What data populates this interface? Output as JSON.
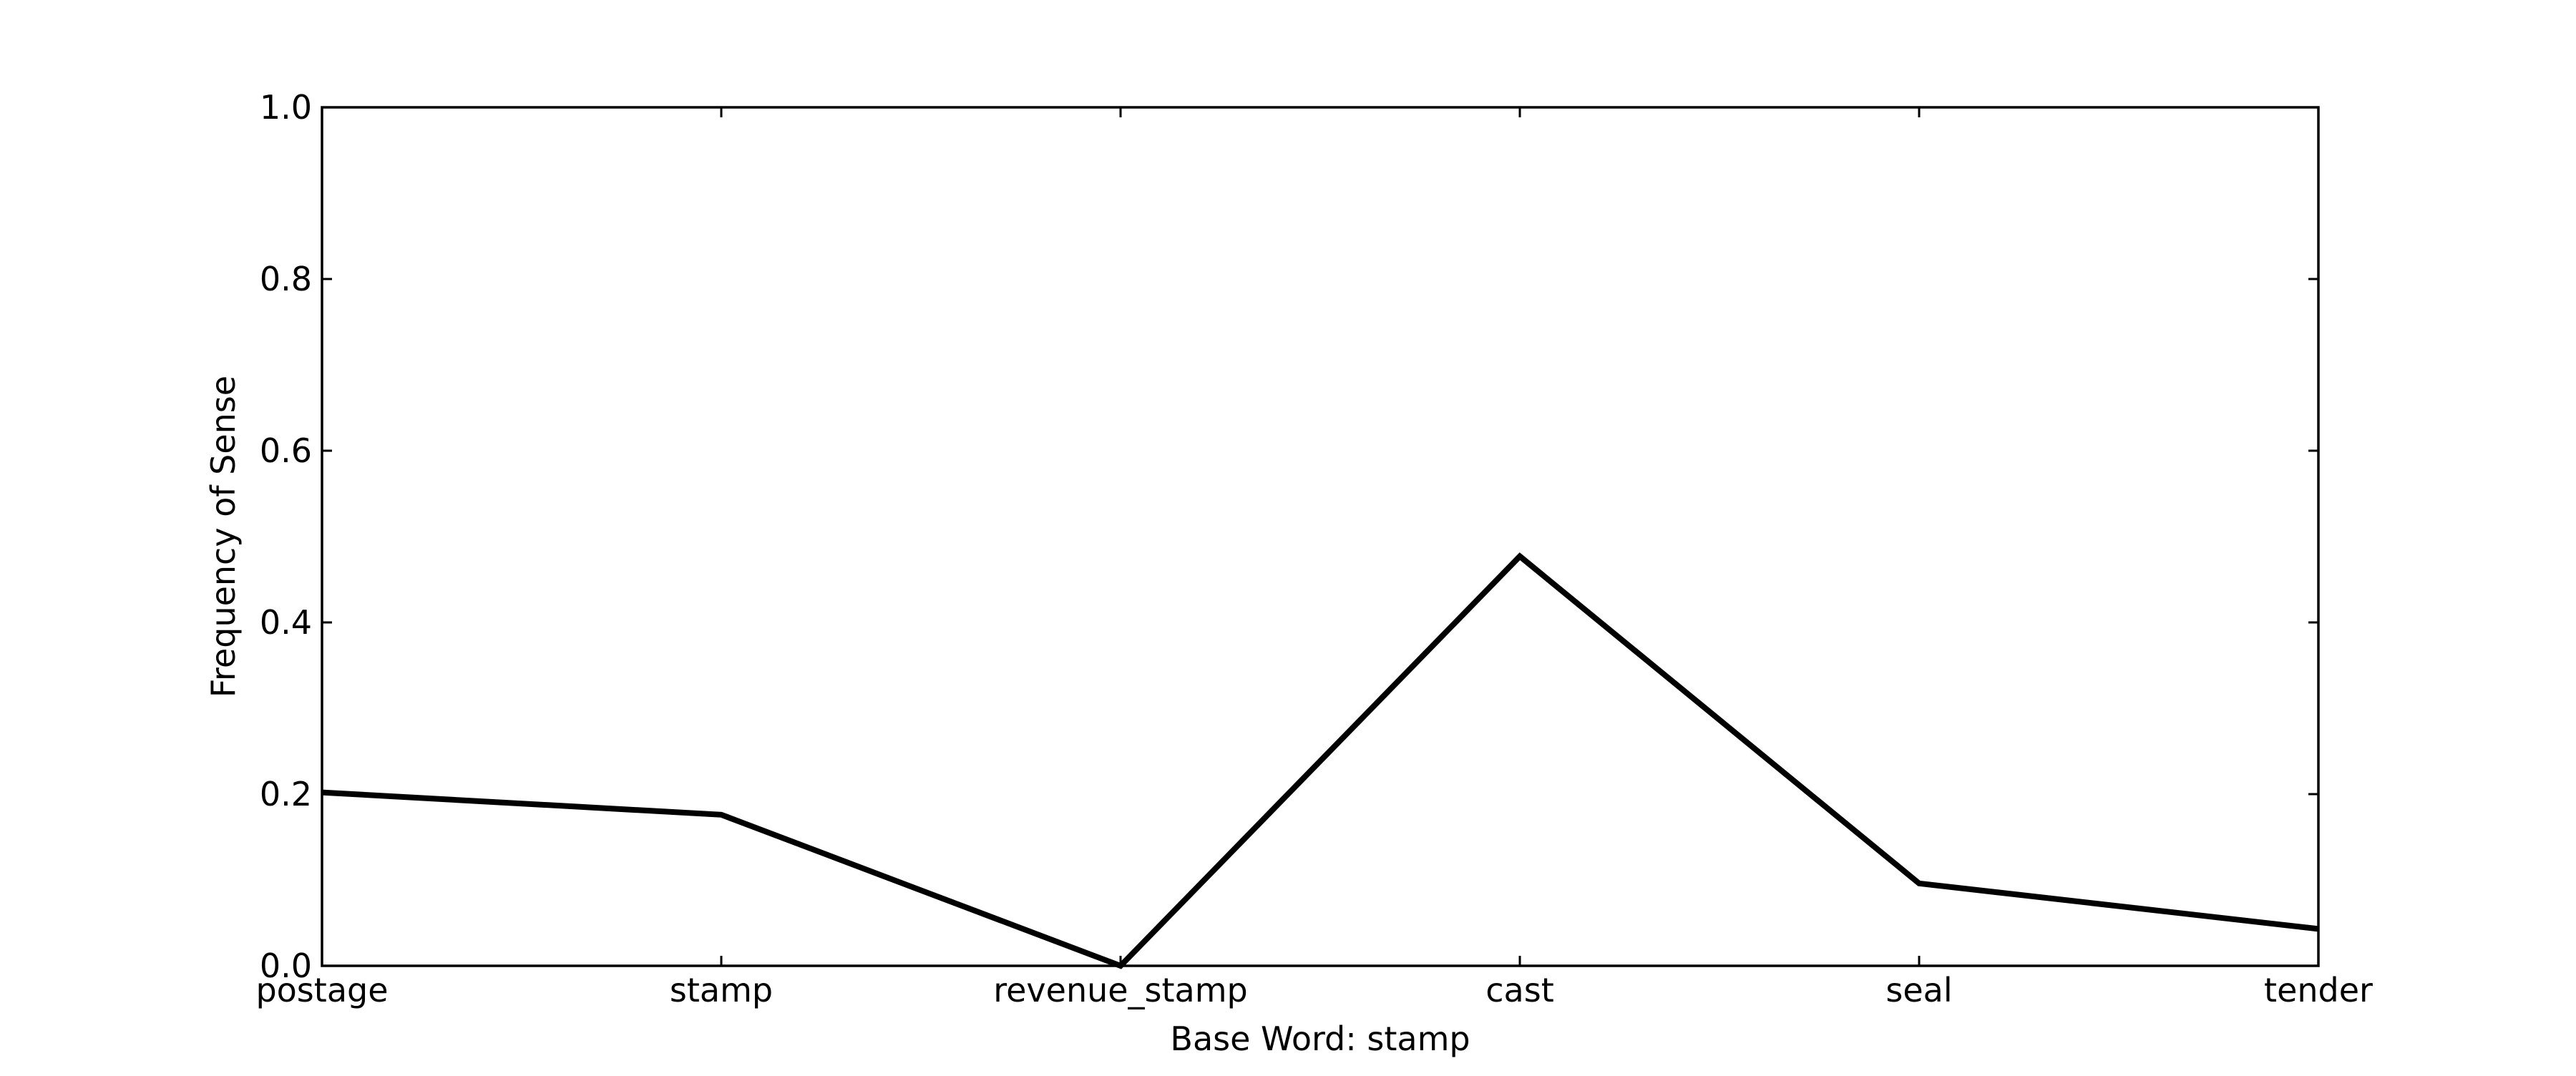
{
  "chart_data": {
    "type": "line",
    "title": "",
    "xlabel": "Base Word: stamp",
    "ylabel": "Frequency of Sense",
    "categories": [
      "postage",
      "stamp",
      "revenue_stamp",
      "cast",
      "seal",
      "tender"
    ],
    "series": [
      {
        "values": [
          0.202,
          0.176,
          0.0,
          0.477,
          0.096,
          0.043
        ],
        "color": "#000000"
      }
    ],
    "ylim": [
      0.0,
      1.0
    ],
    "yticks": [
      "0.0",
      "0.2",
      "0.4",
      "0.6",
      "0.8",
      "1.0"
    ],
    "grid": false,
    "legend": "none"
  }
}
